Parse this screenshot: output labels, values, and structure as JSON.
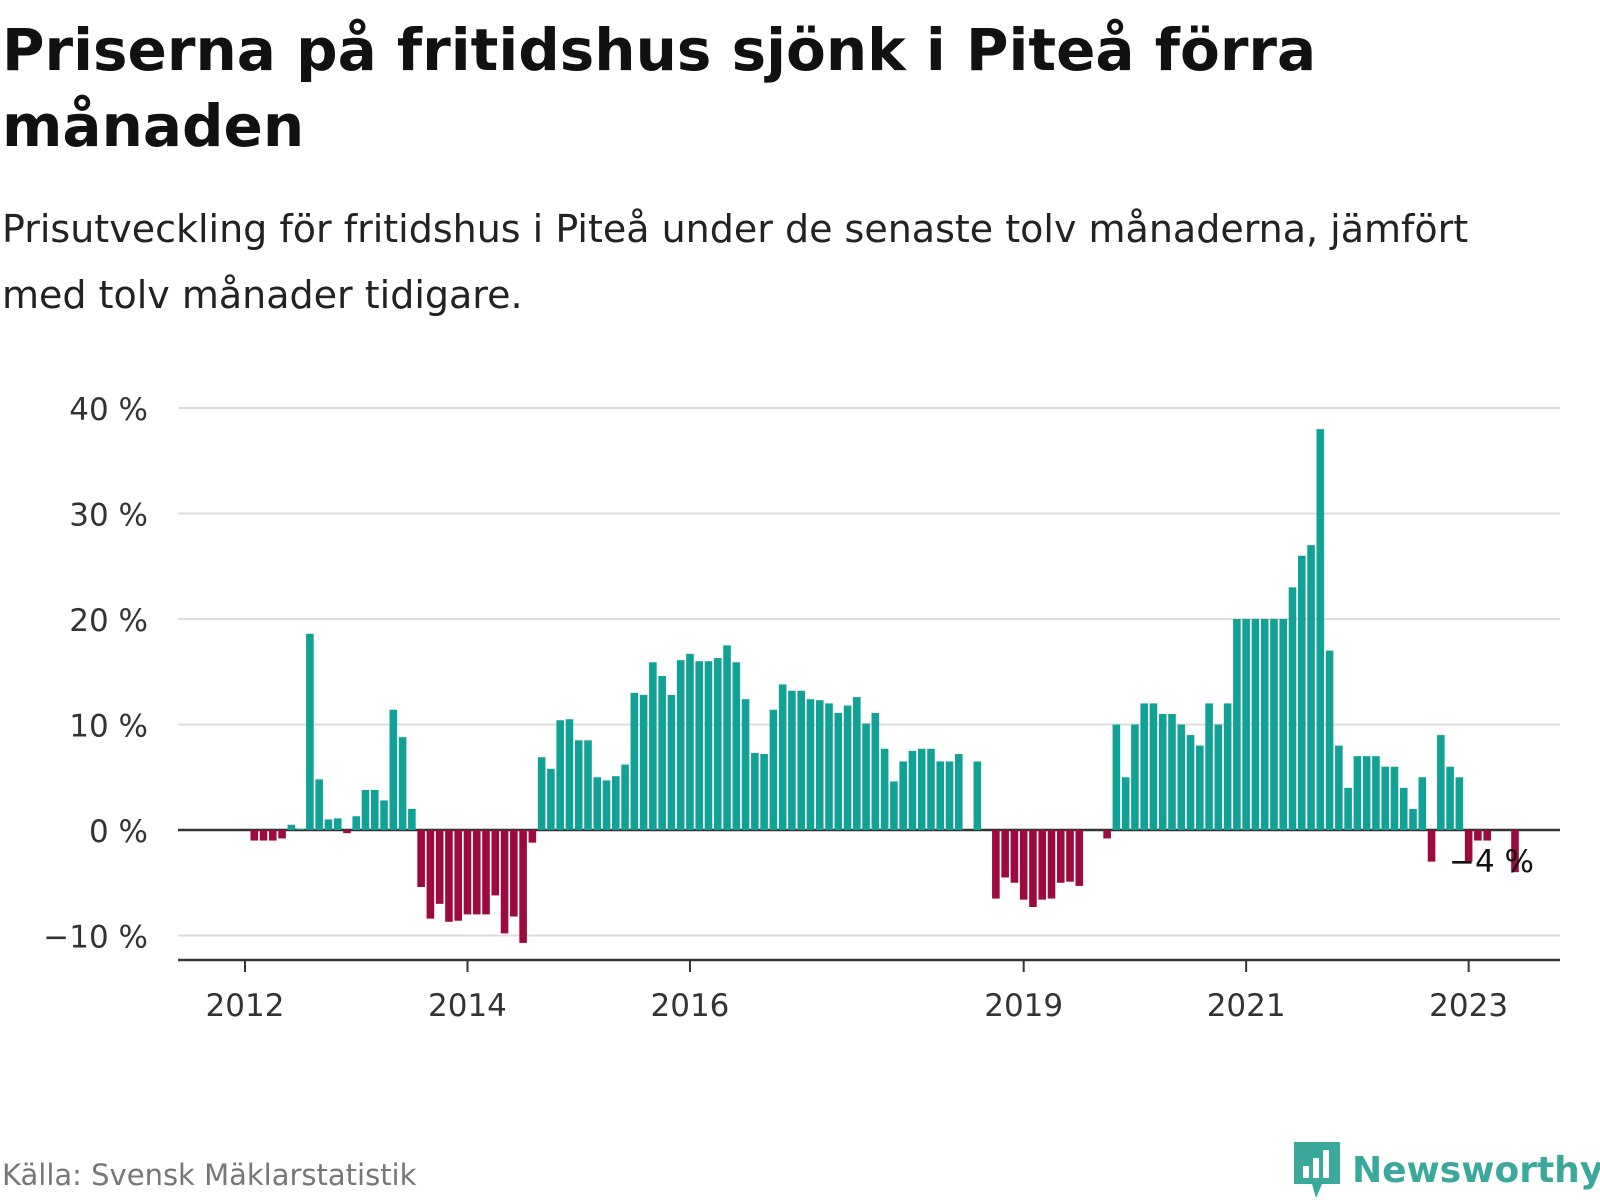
{
  "title": "Priserna på fritidshus sjönk i Piteå förra månaden",
  "subtitle": "Prisutveckling för fritidshus i Piteå under de senaste tolv månaderna, jämfört med tolv månader tidigare.",
  "source": "Källa: Svensk Mäklarstatistik",
  "brand": "Newsworthy",
  "colors": {
    "positive": "#12a295",
    "negative": "#9c0a3f",
    "grid": "#dddddd",
    "axis": "#333333",
    "brand": "#3aa89b"
  },
  "chart_data": {
    "type": "bar",
    "x_start": "2012-01",
    "ylim": [
      -12,
      40
    ],
    "yticks": [
      -10,
      0,
      10,
      20,
      30,
      40
    ],
    "ytick_labels": [
      "−10 %",
      "0 %",
      "10 %",
      "20 %",
      "30 %",
      "40 %"
    ],
    "xticks": [
      {
        "label": "2012",
        "month": "2012-01"
      },
      {
        "label": "2014",
        "month": "2014-01"
      },
      {
        "label": "2016",
        "month": "2016-01"
      },
      {
        "label": "2019",
        "month": "2019-01"
      },
      {
        "label": "2021",
        "month": "2021-01"
      },
      {
        "label": "2023",
        "month": "2023-01"
      }
    ],
    "annotation": {
      "text": "−4 %",
      "month": "2023-04"
    },
    "values": [
      null,
      -1.0,
      -1.0,
      -1.0,
      -0.8,
      0.5,
      0.1,
      18.6,
      4.8,
      1.0,
      1.1,
      -0.3,
      1.3,
      3.8,
      3.8,
      2.8,
      11.4,
      8.8,
      2.0,
      -5.4,
      -8.4,
      -7.0,
      -8.7,
      -8.6,
      -8.0,
      -8.0,
      -8.0,
      -6.2,
      -9.8,
      -8.2,
      -10.7,
      -1.2,
      6.9,
      5.8,
      10.4,
      10.5,
      8.5,
      8.5,
      5.0,
      4.7,
      5.1,
      6.2,
      13.0,
      12.8,
      15.9,
      14.6,
      12.8,
      16.1,
      16.7,
      16.0,
      16.0,
      16.3,
      17.5,
      15.9,
      12.4,
      7.3,
      7.2,
      11.4,
      13.8,
      13.2,
      13.2,
      12.4,
      12.3,
      12.0,
      11.1,
      11.8,
      12.6,
      10.1,
      11.1,
      7.7,
      4.6,
      6.5,
      7.5,
      7.7,
      7.7,
      6.5,
      6.5,
      7.2,
      null,
      6.5,
      null,
      -6.5,
      -4.5,
      -5.0,
      -6.6,
      -7.3,
      -6.6,
      -6.5,
      -5.0,
      -4.9,
      -5.3,
      null,
      null,
      -0.8,
      10.0,
      5.0,
      10.0,
      12.0,
      12.0,
      11.0,
      11.0,
      10.0,
      9.0,
      8.0,
      12.0,
      10.0,
      12.0,
      20.0,
      20.0,
      20.0,
      20.0,
      20.0,
      20.0,
      23.0,
      26.0,
      27.0,
      38.0,
      17.0,
      8.0,
      4.0,
      7.0,
      7.0,
      7.0,
      6.0,
      6.0,
      4.0,
      2.0,
      5.0,
      -3.0,
      9.0,
      6.0,
      5.0,
      -3.0,
      -1.0,
      -1.0,
      null,
      null,
      -4.0
    ]
  }
}
